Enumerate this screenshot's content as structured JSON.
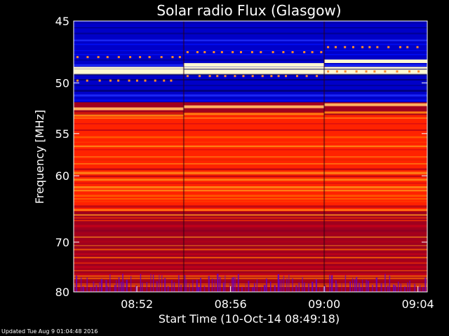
{
  "chart_data": {
    "type": "heatmap",
    "title": "Solar radio Flux (Glasgow)",
    "xlabel": "Start Time (10-Oct-14 08:49:18)",
    "ylabel": "Frequency [MHz]",
    "x_ticks": [
      "08:52",
      "08:56",
      "09:00",
      "09:04"
    ],
    "y_ticks": [
      "45",
      "50",
      "55",
      "60",
      "70",
      "80"
    ],
    "y_scale": "reciprocal",
    "ylim": [
      45,
      80
    ],
    "x_unit": "minutes from 08:49:18",
    "xlim": [
      0,
      15.1
    ],
    "segment_boundaries_min": [
      4.7,
      10.7
    ],
    "bands": [
      {
        "freq": [
          45,
          46.2
        ],
        "level": "low"
      },
      {
        "freq": [
          46.2,
          48.6
        ],
        "level": "low-interference"
      },
      {
        "freq": [
          48.6,
          49.3
        ],
        "level": "saturated"
      },
      {
        "freq": [
          49.3,
          51.8
        ],
        "level": "low"
      },
      {
        "freq": [
          51.8,
          52.8
        ],
        "level": "medium"
      },
      {
        "freq": [
          52.8,
          58
        ],
        "level": "high"
      },
      {
        "freq": [
          58,
          65
        ],
        "level": "high-striated"
      },
      {
        "freq": [
          65,
          77
        ],
        "level": "medium-high"
      },
      {
        "freq": [
          77,
          80
        ],
        "level": "medium-noisy"
      }
    ],
    "colors": {
      "low": "#0000c8",
      "medium": "#a0001e",
      "high": "#ff2200",
      "saturated": "#fff8d0",
      "noise": "#6400c8"
    }
  },
  "footer": {
    "updated": "Updated Tue Aug  9 01:04:48 2016"
  }
}
